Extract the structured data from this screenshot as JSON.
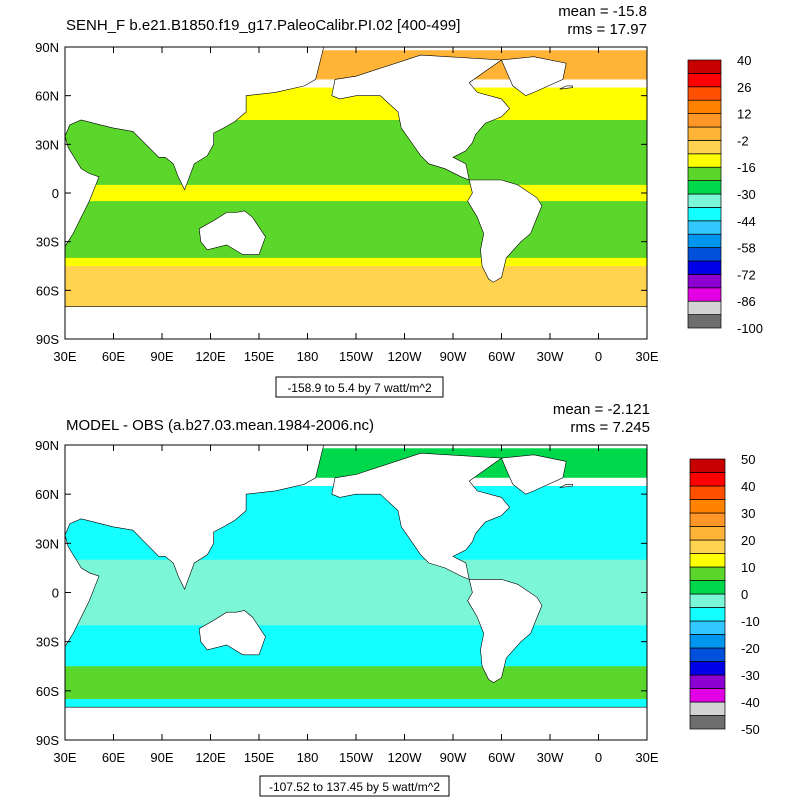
{
  "chart_data": [
    {
      "type": "heatmap",
      "title": "SENH_F b.e21.B1850.f19_g17.PaleoCalibr.PI.02 [400-499]",
      "mean_text": "mean = -15.8",
      "rms_text": "rms = 17.97",
      "contour_info": "-158.9 to 5.4 by 7 watt/m^2",
      "lat_ticks": [
        {
          "value": 90,
          "label": "90N"
        },
        {
          "value": 60,
          "label": "60N"
        },
        {
          "value": 30,
          "label": "30N"
        },
        {
          "value": 0,
          "label": "0"
        },
        {
          "value": -30,
          "label": "30S"
        },
        {
          "value": -60,
          "label": "60S"
        },
        {
          "value": -90,
          "label": "90S"
        }
      ],
      "lon_ticks": [
        {
          "value": 30,
          "label": "30E"
        },
        {
          "value": 60,
          "label": "60E"
        },
        {
          "value": 90,
          "label": "90E"
        },
        {
          "value": 120,
          "label": "120E"
        },
        {
          "value": 150,
          "label": "150E"
        },
        {
          "value": 180,
          "label": "180"
        },
        {
          "value": 210,
          "label": "150W"
        },
        {
          "value": 240,
          "label": "120W"
        },
        {
          "value": 270,
          "label": "90W"
        },
        {
          "value": 300,
          "label": "60W"
        },
        {
          "value": 330,
          "label": "30W"
        },
        {
          "value": 360,
          "label": "0"
        },
        {
          "value": 390,
          "label": "30E"
        }
      ],
      "lon_range": [
        30,
        390
      ],
      "lat_range": [
        -90,
        90
      ],
      "colorbar": {
        "colors": [
          "#6e6e6e",
          "#d3d3d3",
          "#e400e4",
          "#8c00d2",
          "#0000e6",
          "#0050dc",
          "#0096f0",
          "#32c8ff",
          "#14ffff",
          "#7bf7d7",
          "#00d84c",
          "#5ad72a",
          "#ffff00",
          "#ffd250",
          "#ffb437",
          "#ff9628",
          "#ff8200",
          "#ff5000",
          "#ff0000",
          "#c80000"
        ],
        "labels": [
          "-100",
          "-86",
          "-72",
          "-58",
          "-44",
          "-30",
          "-16",
          "-2",
          "12",
          "26",
          "40"
        ]
      },
      "regions": [
        {
          "color": "#ffff00",
          "lat_min": -70,
          "lat_max": 65
        },
        {
          "color": "#5ad72a",
          "lat_min": 5,
          "lat_max": 45
        },
        {
          "color": "#5ad72a",
          "lat_min": -40,
          "lat_max": -5
        },
        {
          "color": "#ffd250",
          "lat_min": -70,
          "lat_max": -45
        },
        {
          "color": "#ffb437",
          "lat_min": 70,
          "lat_max": 88
        }
      ]
    },
    {
      "type": "heatmap",
      "title": "MODEL - OBS (a.b27.03.mean.1984-2006.nc)",
      "mean_text": "mean = -2.121",
      "rms_text": "rms = 7.245",
      "contour_info": "-107.52 to 137.45 by 5 watt/m^2",
      "lat_ticks": [
        {
          "value": 90,
          "label": "90N"
        },
        {
          "value": 60,
          "label": "60N"
        },
        {
          "value": 30,
          "label": "30N"
        },
        {
          "value": 0,
          "label": "0"
        },
        {
          "value": -30,
          "label": "30S"
        },
        {
          "value": -60,
          "label": "60S"
        },
        {
          "value": -90,
          "label": "90S"
        }
      ],
      "lon_ticks": [
        {
          "value": 30,
          "label": "30E"
        },
        {
          "value": 60,
          "label": "60E"
        },
        {
          "value": 90,
          "label": "90E"
        },
        {
          "value": 120,
          "label": "120E"
        },
        {
          "value": 150,
          "label": "150E"
        },
        {
          "value": 180,
          "label": "180"
        },
        {
          "value": 210,
          "label": "150W"
        },
        {
          "value": 240,
          "label": "120W"
        },
        {
          "value": 270,
          "label": "90W"
        },
        {
          "value": 300,
          "label": "60W"
        },
        {
          "value": 330,
          "label": "30W"
        },
        {
          "value": 360,
          "label": "0"
        },
        {
          "value": 390,
          "label": "30E"
        }
      ],
      "lon_range": [
        30,
        390
      ],
      "lat_range": [
        -90,
        90
      ],
      "colorbar": {
        "colors": [
          "#6e6e6e",
          "#d3d3d3",
          "#e400e4",
          "#8c00d2",
          "#0000e6",
          "#0050dc",
          "#0096f0",
          "#32c8ff",
          "#14ffff",
          "#7bf7d7",
          "#00d84c",
          "#5ad72a",
          "#ffff00",
          "#ffd250",
          "#ffb437",
          "#ff9628",
          "#ff8200",
          "#ff5000",
          "#ff0000",
          "#c80000"
        ],
        "labels": [
          "-50",
          "-40",
          "-30",
          "-20",
          "-10",
          "0",
          "10",
          "20",
          "30",
          "40",
          "50"
        ]
      },
      "regions": [
        {
          "color": "#14ffff",
          "lat_min": -70,
          "lat_max": 65
        },
        {
          "color": "#7bf7d7",
          "lat_min": -20,
          "lat_max": 20
        },
        {
          "color": "#5ad72a",
          "lat_min": -65,
          "lat_max": -45
        },
        {
          "color": "#00d84c",
          "lat_min": 70,
          "lat_max": 88
        }
      ]
    }
  ]
}
